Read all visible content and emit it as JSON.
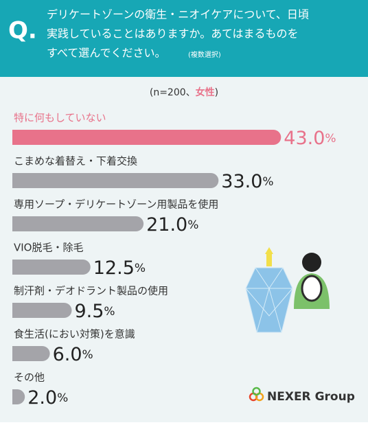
{
  "header": {
    "mark": "Q.",
    "lines": [
      "デリケートゾーンの衛生・ニオイケアについて、日頃",
      "実践していることはありますか。あてはまるものを",
      "すべて選んでください。"
    ],
    "note": "(複数選択)"
  },
  "chart_data": {
    "type": "bar",
    "orientation": "horizontal",
    "subtitle_parts": [
      "(n=200、",
      "女性",
      ")"
    ],
    "categories": [
      "特に何もしていない",
      "こまめな着替え・下着交換",
      "専用ソープ・デリケートゾーン用製品を使用",
      "VIO脱毛・除毛",
      "制汗剤・デオドラント製品の使用",
      "食生活(におい対策)を意識",
      "その他"
    ],
    "values": [
      43.0,
      33.0,
      21.0,
      12.5,
      9.5,
      6.0,
      2.0
    ],
    "value_labels": [
      "43.0%",
      "33.0%",
      "21.0%",
      "12.5%",
      "9.5%",
      "6.0%",
      "2.0%"
    ],
    "colors": [
      "#e8728a",
      "#a4a4a9",
      "#a4a4a9",
      "#a4a4a9",
      "#a4a4a9",
      "#a4a4a9",
      "#a4a4a9"
    ]
  },
  "logo": {
    "text": "NEXER Group"
  }
}
